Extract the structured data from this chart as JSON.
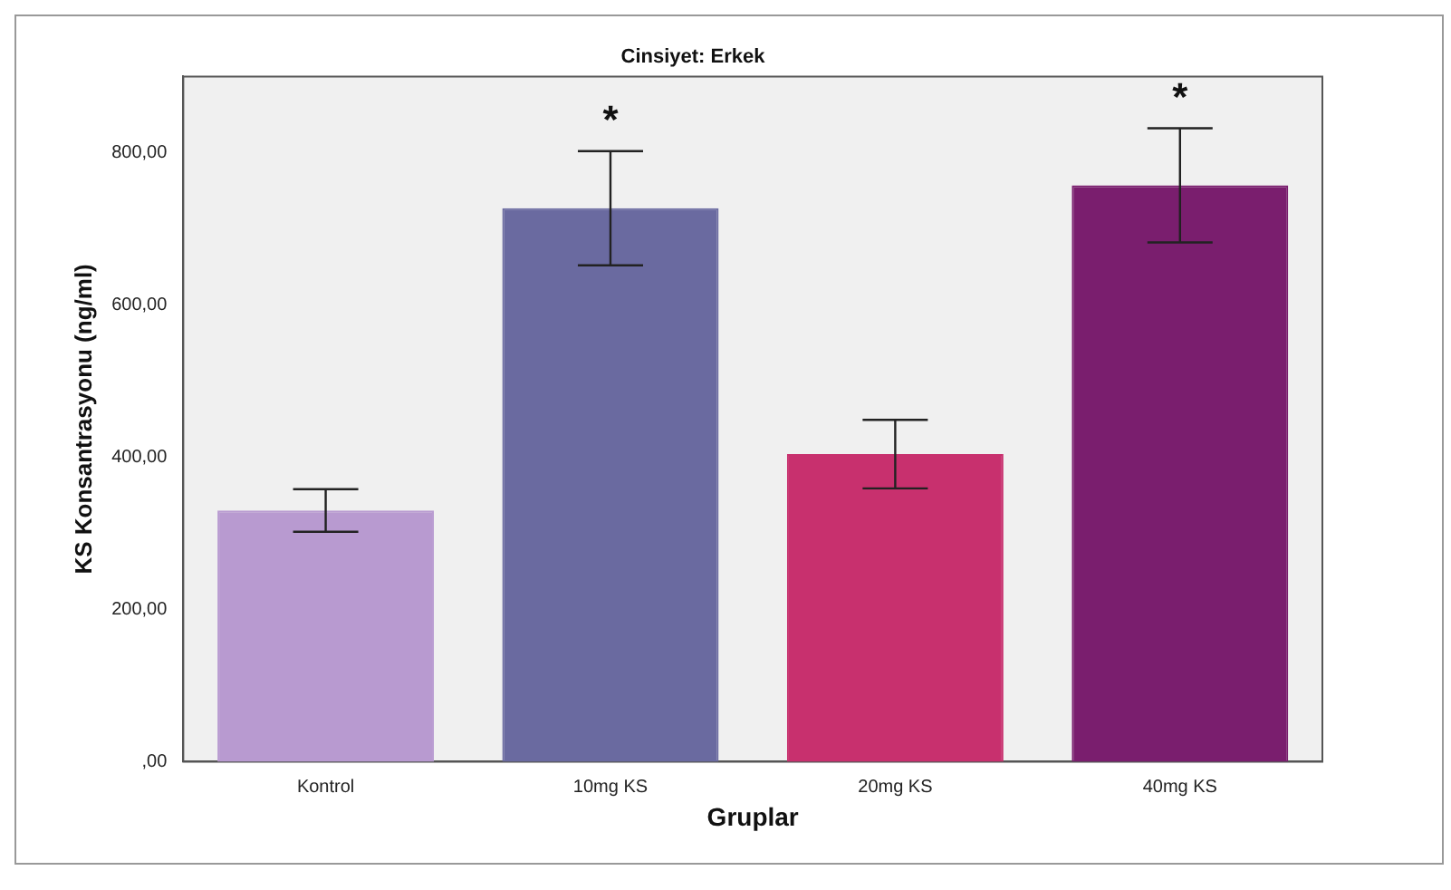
{
  "chart_data": {
    "type": "bar",
    "title": "Cinsiyet: Erkek",
    "xlabel": "Gruplar",
    "ylabel": "KS Konsantrasyonu (ng/ml)",
    "categories": [
      "Kontrol",
      "10mg KS",
      "20mg KS",
      "40mg KS"
    ],
    "values": [
      330,
      727,
      404,
      757
    ],
    "colors": [
      "#b89ad0",
      "#6a6aa0",
      "#c8306e",
      "#7a1e6e"
    ],
    "errors": [
      28,
      75,
      45,
      75
    ],
    "ylim": [
      0,
      900
    ],
    "yticks": [
      {
        "value": 0,
        "label": ",00"
      },
      {
        "value": 200,
        "label": "200,00"
      },
      {
        "value": 400,
        "label": "400,00"
      },
      {
        "value": 600,
        "label": "600,00"
      },
      {
        "value": 800,
        "label": "800,00"
      }
    ],
    "annotations": [
      {
        "text": "*",
        "x": "10mg KS",
        "y": 802
      },
      {
        "text": "*",
        "x": "40mg KS",
        "y": 832
      }
    ],
    "grid": false,
    "legend": false
  }
}
